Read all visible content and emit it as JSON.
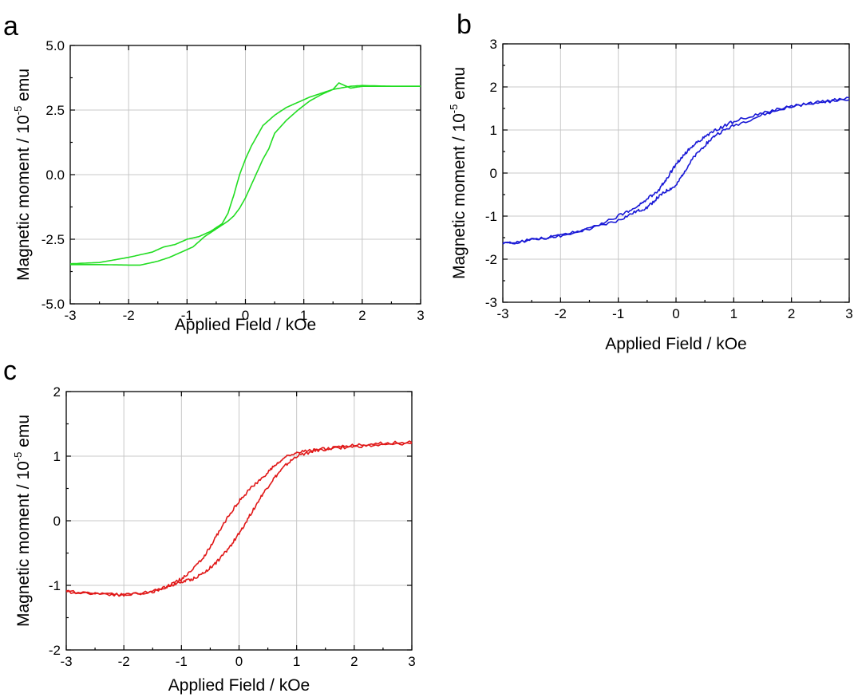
{
  "chart_data": [
    {
      "panel": "a",
      "type": "line",
      "xlabel": "Applied Field / kOe",
      "ylabel_main": "Magnetic moment / 10",
      "ylabel_sup": "-5",
      "ylabel_unit": " emu",
      "xlim": [
        -3,
        3
      ],
      "ylim": [
        -5,
        5
      ],
      "xticks": [
        -3,
        -2,
        -1,
        0,
        1,
        2,
        3
      ],
      "xtick_labels": [
        "-3",
        "-2",
        "-1",
        "0",
        "1",
        "2",
        "3"
      ],
      "yticks": [
        -5,
        -2.5,
        0,
        2.5,
        5
      ],
      "ytick_labels": [
        "-5.0",
        "-2.5",
        "0.0",
        "2.5",
        "5.0"
      ],
      "grid": true,
      "color": "#22dd22",
      "series": [
        {
          "x": [
            -3,
            -2.5,
            -2,
            -1.6,
            -1.4,
            -1.2,
            -1.0,
            -0.8,
            -0.6,
            -0.4,
            -0.3,
            -0.2,
            -0.1,
            0,
            0.1,
            0.2,
            0.3,
            0.5,
            0.7,
            0.9,
            1.1,
            1.3,
            1.5,
            1.6,
            1.8,
            2,
            2.5,
            3
          ],
          "y": [
            -3.45,
            -3.4,
            -3.2,
            -3.0,
            -2.8,
            -2.7,
            -2.5,
            -2.4,
            -2.2,
            -1.9,
            -1.5,
            -0.8,
            0.0,
            0.6,
            1.1,
            1.5,
            1.9,
            2.3,
            2.6,
            2.8,
            3.0,
            3.15,
            3.3,
            3.55,
            3.35,
            3.42,
            3.42,
            3.42
          ]
        },
        {
          "x": [
            3,
            2.5,
            2,
            1.8,
            1.5,
            1.3,
            1.1,
            0.9,
            0.7,
            0.5,
            0.4,
            0.3,
            0.2,
            0.1,
            0,
            -0.1,
            -0.2,
            -0.3,
            -0.5,
            -0.7,
            -0.9,
            -1.1,
            -1.3,
            -1.5,
            -1.8,
            -2,
            -2.5,
            -3
          ],
          "y": [
            3.42,
            3.42,
            3.45,
            3.42,
            3.3,
            3.1,
            2.85,
            2.5,
            2.1,
            1.6,
            1.0,
            0.6,
            0.1,
            -0.4,
            -0.9,
            -1.3,
            -1.6,
            -1.8,
            -2.1,
            -2.4,
            -2.8,
            -3.0,
            -3.2,
            -3.35,
            -3.5,
            -3.5,
            -3.48,
            -3.48
          ]
        }
      ]
    },
    {
      "panel": "b",
      "type": "line",
      "xlabel": "Applied Field / kOe",
      "ylabel_main": "Magnetic moment / 10",
      "ylabel_sup": "-5",
      "ylabel_unit": " emu",
      "xlim": [
        -3,
        3
      ],
      "ylim": [
        -3,
        3
      ],
      "xticks": [
        -3,
        -2,
        -1,
        0,
        1,
        2,
        3
      ],
      "xtick_labels": [
        "-3",
        "-2",
        "-1",
        "0",
        "1",
        "2",
        "3"
      ],
      "yticks": [
        -3,
        -2,
        -1,
        0,
        1,
        2,
        3
      ],
      "ytick_labels": [
        "-3",
        "-2",
        "-1",
        "0",
        "1",
        "2",
        "3"
      ],
      "grid": true,
      "color": "#1a1ad6",
      "series": [
        {
          "x": [
            -3,
            -2.5,
            -2,
            -1.5,
            -1,
            -0.7,
            -0.5,
            -0.3,
            -0.15,
            0,
            0.15,
            0.3,
            0.5,
            0.7,
            1,
            1.5,
            2,
            2.5,
            3
          ],
          "y": [
            -1.65,
            -1.55,
            -1.45,
            -1.3,
            -1.1,
            -0.9,
            -0.8,
            -0.55,
            -0.4,
            -0.3,
            0.05,
            0.35,
            0.65,
            0.9,
            1.1,
            1.35,
            1.55,
            1.65,
            1.7
          ]
        },
        {
          "x": [
            3,
            2.5,
            2,
            1.5,
            1,
            0.7,
            0.5,
            0.3,
            0.15,
            0,
            -0.15,
            -0.3,
            -0.5,
            -0.7,
            -1,
            -1.5,
            -2,
            -2.5,
            -3
          ],
          "y": [
            1.75,
            1.65,
            1.55,
            1.4,
            1.2,
            1.0,
            0.85,
            0.65,
            0.45,
            0.2,
            -0.1,
            -0.4,
            -0.6,
            -0.8,
            -1.0,
            -1.3,
            -1.45,
            -1.55,
            -1.65
          ]
        }
      ]
    },
    {
      "panel": "c",
      "type": "line",
      "xlabel": "Applied Field / kOe",
      "ylabel_main": "Magnetic moment / 10",
      "ylabel_sup": "-5",
      "ylabel_unit": " emu",
      "xlim": [
        -3,
        3
      ],
      "ylim": [
        -2,
        2
      ],
      "xticks": [
        -3,
        -2,
        -1,
        0,
        1,
        2,
        3
      ],
      "xtick_labels": [
        "-3",
        "-2",
        "-1",
        "0",
        "1",
        "2",
        "3"
      ],
      "yticks": [
        -2,
        -1,
        0,
        1,
        2
      ],
      "ytick_labels": [
        "-2",
        "-1",
        "0",
        "1",
        "2"
      ],
      "grid": true,
      "color": "#e01818",
      "series": [
        {
          "x": [
            -3,
            -2.5,
            -2,
            -1.5,
            -1.2,
            -1,
            -0.8,
            -0.6,
            -0.4,
            -0.2,
            0,
            0.2,
            0.4,
            0.6,
            0.8,
            1,
            1.3,
            1.6,
            2,
            2.5,
            3
          ],
          "y": [
            -1.1,
            -1.12,
            -1.15,
            -1.1,
            -1.0,
            -0.95,
            -0.9,
            -0.8,
            -0.65,
            -0.45,
            -0.2,
            0.1,
            0.4,
            0.65,
            0.85,
            1.0,
            1.08,
            1.12,
            1.15,
            1.17,
            1.2
          ]
        },
        {
          "x": [
            3,
            2.5,
            2,
            1.6,
            1.3,
            1,
            0.8,
            0.6,
            0.4,
            0.2,
            0,
            -0.2,
            -0.4,
            -0.6,
            -0.8,
            -1,
            -1.2,
            -1.5,
            -2,
            -2.5,
            -3
          ],
          "y": [
            1.22,
            1.2,
            1.17,
            1.12,
            1.1,
            1.05,
            0.98,
            0.85,
            0.65,
            0.5,
            0.3,
            0.05,
            -0.25,
            -0.55,
            -0.75,
            -0.9,
            -1.0,
            -1.1,
            -1.15,
            -1.12,
            -1.1
          ]
        }
      ]
    }
  ]
}
